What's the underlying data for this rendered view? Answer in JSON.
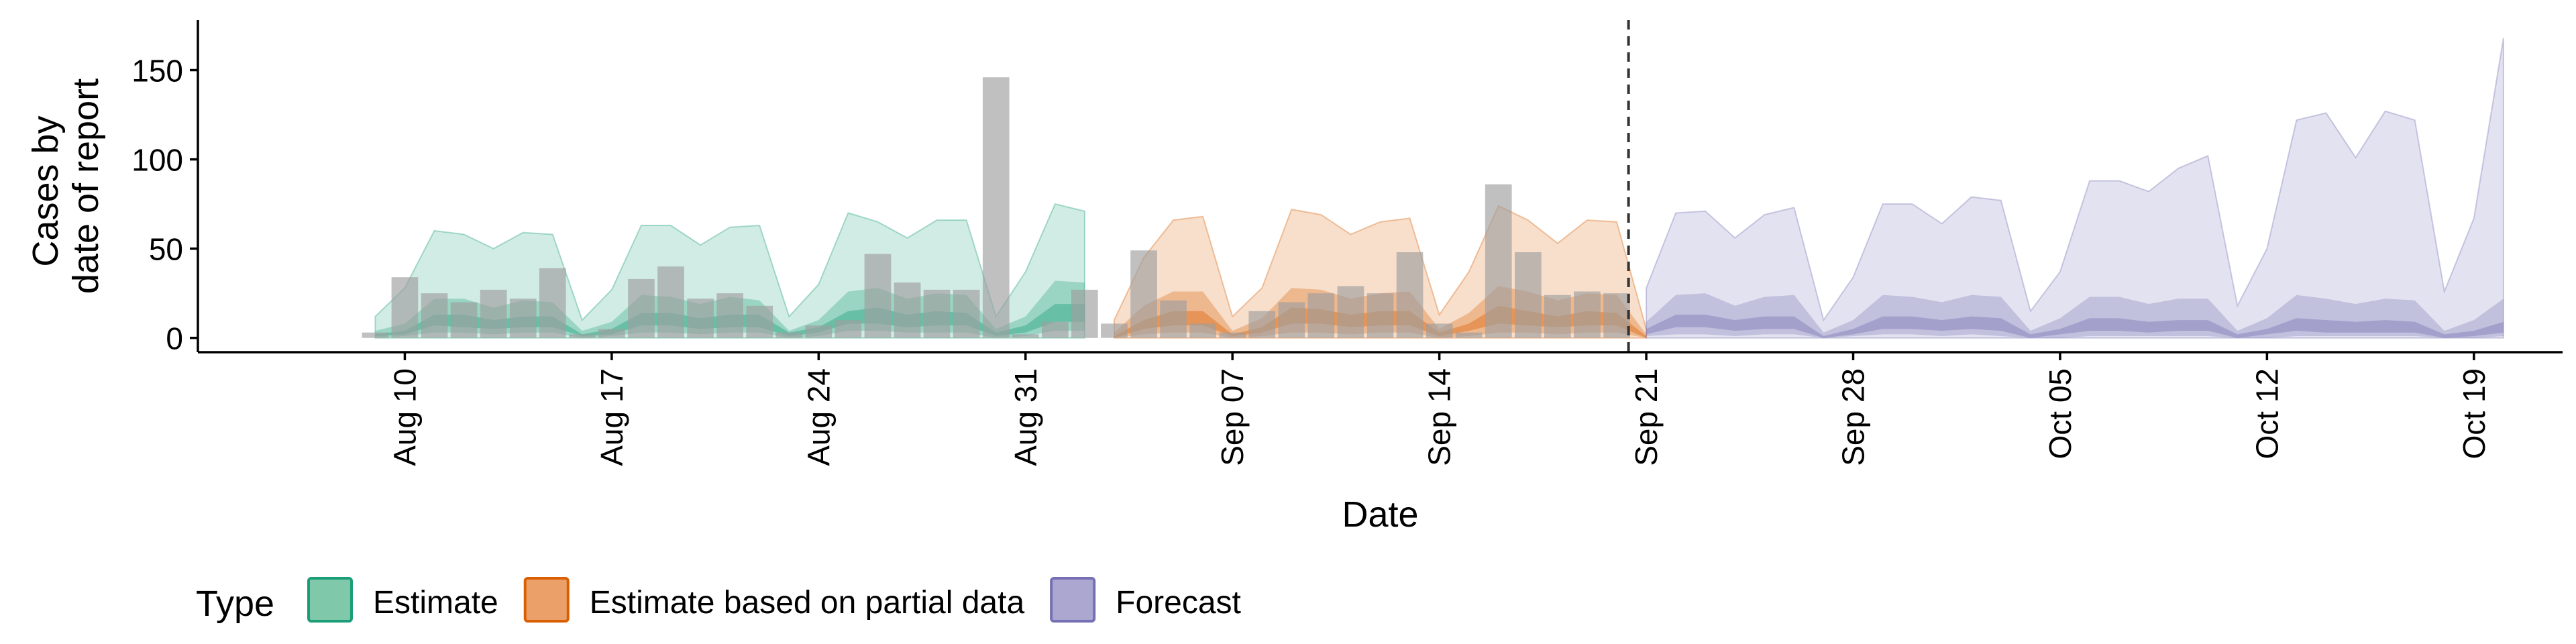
{
  "chart_data": {
    "type": "area",
    "xlabel": "Date",
    "ylabel_lines": [
      "Cases by",
      "date of report"
    ],
    "ylim": [
      -8,
      178
    ],
    "yticks": [
      0,
      50,
      100,
      150
    ],
    "xlim": [
      "2020-08-03",
      "2020-10-22"
    ],
    "x_ticks": [
      {
        "date": "2020-08-10",
        "label": "Aug 10"
      },
      {
        "date": "2020-08-17",
        "label": "Aug 17"
      },
      {
        "date": "2020-08-24",
        "label": "Aug 24"
      },
      {
        "date": "2020-08-31",
        "label": "Aug 31"
      },
      {
        "date": "2020-09-07",
        "label": "Sep 07"
      },
      {
        "date": "2020-09-14",
        "label": "Sep 14"
      },
      {
        "date": "2020-09-21",
        "label": "Sep 21"
      },
      {
        "date": "2020-09-28",
        "label": "Sep 28"
      },
      {
        "date": "2020-10-05",
        "label": "Oct 05"
      },
      {
        "date": "2020-10-12",
        "label": "Oct 12"
      },
      {
        "date": "2020-10-19",
        "label": "Oct 19"
      }
    ],
    "forecast_start": "2020-09-20",
    "legend": {
      "title": "Type",
      "position": "bottom",
      "items": [
        {
          "label": "Estimate",
          "fill": "#7fc8a9",
          "stroke": "#1b9e77"
        },
        {
          "label": "Estimate based on partial data",
          "fill": "#eba06a",
          "stroke": "#d95f02"
        },
        {
          "label": "Forecast",
          "fill": "#aba7d1",
          "stroke": "#7570b3"
        }
      ]
    },
    "colors": {
      "estimate": "#1b9e77",
      "partial": "#d95f02",
      "forecast": "#7570b3",
      "bars": "#9e9e9e"
    },
    "reported_cases": {
      "start": "2020-08-09",
      "values": [
        3,
        34,
        25,
        20,
        27,
        22,
        39,
        2,
        5,
        33,
        40,
        22,
        25,
        18,
        3,
        7,
        10,
        47,
        31,
        27,
        27,
        146,
        2,
        9,
        27,
        8,
        49,
        21,
        8,
        3,
        15,
        20,
        25,
        29,
        25,
        48,
        8,
        3,
        86,
        48,
        24,
        26,
        25
      ]
    },
    "series": [
      {
        "name": "Estimate",
        "start": "2020-08-09",
        "upper90": [
          12,
          28,
          60,
          58,
          50,
          59,
          58,
          10,
          27,
          63,
          63,
          52,
          62,
          63,
          12,
          30,
          70,
          65,
          56,
          66,
          66,
          12,
          37,
          75,
          71
        ],
        "upper50": [
          4,
          8,
          22,
          22,
          17,
          21,
          20,
          4,
          9,
          24,
          23,
          19,
          23,
          21,
          4,
          10,
          26,
          28,
          22,
          25,
          24,
          5,
          12,
          32,
          31
        ],
        "upper20": [
          2,
          4,
          13,
          13,
          10,
          12,
          12,
          2,
          5,
          14,
          14,
          11,
          13,
          13,
          3,
          6,
          15,
          17,
          13,
          15,
          14,
          3,
          7,
          19,
          19
        ],
        "lower20": [
          1,
          2,
          7,
          6,
          5,
          6,
          6,
          1,
          2,
          7,
          7,
          5,
          6,
          6,
          1,
          3,
          8,
          8,
          6,
          7,
          7,
          1,
          3,
          9,
          9
        ],
        "lower50": [
          0,
          1,
          3,
          3,
          2,
          3,
          3,
          0,
          1,
          3,
          3,
          2,
          3,
          3,
          0,
          1,
          4,
          4,
          3,
          3,
          3,
          0,
          1,
          4,
          4
        ],
        "lower90": [
          0,
          0,
          0,
          0,
          0,
          0,
          0,
          0,
          0,
          0,
          0,
          0,
          0,
          0,
          0,
          0,
          0,
          0,
          0,
          0,
          0,
          0,
          0,
          0,
          0
        ]
      },
      {
        "name": "Estimate based on partial data",
        "start": "2020-09-03",
        "upper90": [
          10,
          45,
          66,
          68,
          12,
          28,
          72,
          69,
          58,
          65,
          67,
          13,
          37,
          74,
          66,
          53,
          66,
          65,
          5
        ],
        "upper50": [
          3,
          18,
          26,
          26,
          4,
          11,
          28,
          27,
          22,
          25,
          26,
          5,
          14,
          29,
          26,
          21,
          25,
          24,
          2
        ],
        "upper20": [
          1,
          10,
          15,
          15,
          2,
          6,
          17,
          16,
          13,
          15,
          15,
          3,
          8,
          18,
          15,
          12,
          15,
          14,
          1
        ],
        "lower20": [
          0,
          5,
          7,
          7,
          1,
          3,
          8,
          8,
          6,
          7,
          7,
          1,
          4,
          8,
          7,
          6,
          7,
          7,
          0
        ],
        "lower50": [
          0,
          2,
          3,
          3,
          0,
          1,
          3,
          3,
          2,
          3,
          3,
          0,
          1,
          3,
          3,
          2,
          3,
          3,
          0
        ],
        "lower90": [
          0,
          0,
          0,
          0,
          0,
          0,
          0,
          0,
          0,
          0,
          0,
          0,
          0,
          0,
          0,
          0,
          0,
          0,
          0
        ]
      },
      {
        "name": "Forecast",
        "start": "2020-09-21",
        "upper90": [
          28,
          70,
          71,
          56,
          69,
          73,
          10,
          34,
          75,
          75,
          64,
          79,
          77,
          15,
          37,
          88,
          88,
          82,
          95,
          102,
          18,
          50,
          122,
          126,
          101,
          127,
          122,
          26,
          67,
          168
        ],
        "upper50": [
          9,
          24,
          25,
          18,
          23,
          24,
          3,
          10,
          24,
          23,
          20,
          24,
          23,
          4,
          11,
          23,
          23,
          19,
          22,
          22,
          4,
          11,
          24,
          22,
          19,
          22,
          21,
          4,
          10,
          22
        ],
        "upper20": [
          5,
          13,
          13,
          10,
          12,
          12,
          1,
          5,
          12,
          12,
          10,
          12,
          11,
          2,
          5,
          11,
          11,
          9,
          10,
          10,
          2,
          5,
          11,
          10,
          9,
          10,
          9,
          2,
          4,
          9
        ],
        "lower20": [
          2,
          6,
          6,
          4,
          5,
          5,
          0,
          2,
          5,
          5,
          4,
          5,
          4,
          0,
          2,
          4,
          4,
          3,
          4,
          4,
          0,
          2,
          4,
          3,
          3,
          3,
          3,
          0,
          1,
          3
        ],
        "lower50": [
          1,
          2,
          2,
          1,
          2,
          2,
          0,
          1,
          2,
          2,
          1,
          2,
          1,
          0,
          0,
          1,
          1,
          1,
          1,
          1,
          0,
          0,
          1,
          1,
          1,
          1,
          1,
          0,
          0,
          1
        ],
        "lower90": [
          0,
          0,
          0,
          0,
          0,
          0,
          0,
          0,
          0,
          0,
          0,
          0,
          0,
          0,
          0,
          0,
          0,
          0,
          0,
          0,
          0,
          0,
          0,
          0,
          0,
          0,
          0,
          0,
          0,
          0
        ]
      }
    ]
  }
}
